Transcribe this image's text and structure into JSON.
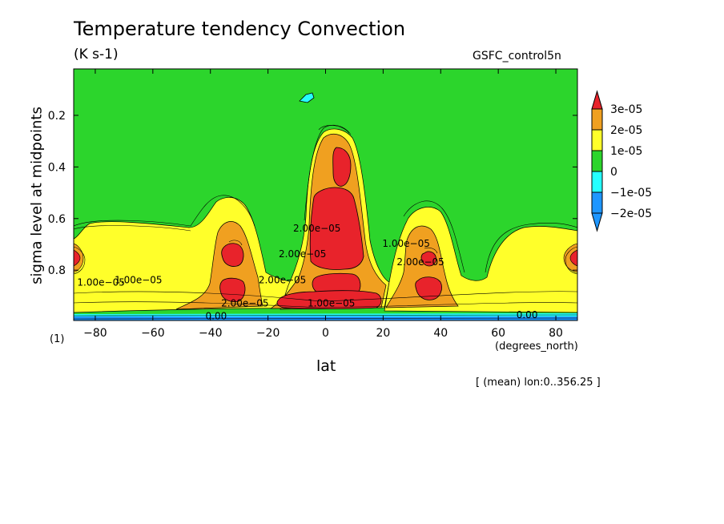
{
  "chart_data": {
    "type": "contour",
    "title": "Temperature tendency Convection",
    "subtitle": "(K s-1)",
    "dataset": "GSFC_control5n",
    "xlabel": "lat",
    "xunits": "(degrees_north)",
    "ylabel": "sigma level at midpoints",
    "yunits": "(1)",
    "footer": "[ (mean) lon:0..356.25 ]",
    "xlim": [
      -87.5,
      87.5
    ],
    "ylim": [
      0.02,
      0.995
    ],
    "y_inverted": true,
    "x_ticks": [
      -80,
      -60,
      -40,
      -20,
      0,
      20,
      40,
      60,
      80
    ],
    "x_tick_labels": [
      "−80",
      "−60",
      "−40",
      "−20",
      "0",
      "20",
      "40",
      "60",
      "80"
    ],
    "y_ticks": [
      0.2,
      0.4,
      0.6,
      0.8
    ],
    "y_tick_labels": [
      "0.2",
      "0.4",
      "0.6",
      "0.8"
    ],
    "colorbar": {
      "levels": [
        {
          "label": "3e-05",
          "color": "#e8232b"
        },
        {
          "label": "2e-05",
          "color": "#f0a020"
        },
        {
          "label": "1e-05",
          "color": "#ffff2a"
        },
        {
          "label": "0",
          "color": "#2cd52c"
        },
        {
          "label": "−1e-05",
          "color": "#25ffff"
        },
        {
          "label": "−2e-05",
          "color": "#1e96ff"
        }
      ]
    },
    "contour_labels": [
      {
        "text": "1.00e−05",
        "lat": -78,
        "sigma": 0.86
      },
      {
        "text": "1.00e−05",
        "lat": -65,
        "sigma": 0.85
      },
      {
        "text": "2.00e−05",
        "lat": -15,
        "sigma": 0.85
      },
      {
        "text": "2.00e−05",
        "lat": -8,
        "sigma": 0.75
      },
      {
        "text": "2.00e−05",
        "lat": -3,
        "sigma": 0.65
      },
      {
        "text": "1.00e−05",
        "lat": 28,
        "sigma": 0.71
      },
      {
        "text": "2.00e−05",
        "lat": 33,
        "sigma": 0.78
      },
      {
        "text": "1.00e−05",
        "lat": 2,
        "sigma": 0.94
      },
      {
        "text": "2.00e−05",
        "lat": -28,
        "sigma": 0.94
      },
      {
        "text": "0.00",
        "lat": -38,
        "sigma": 0.99
      },
      {
        "text": "0.00",
        "lat": 70,
        "sigma": 0.985
      }
    ]
  }
}
